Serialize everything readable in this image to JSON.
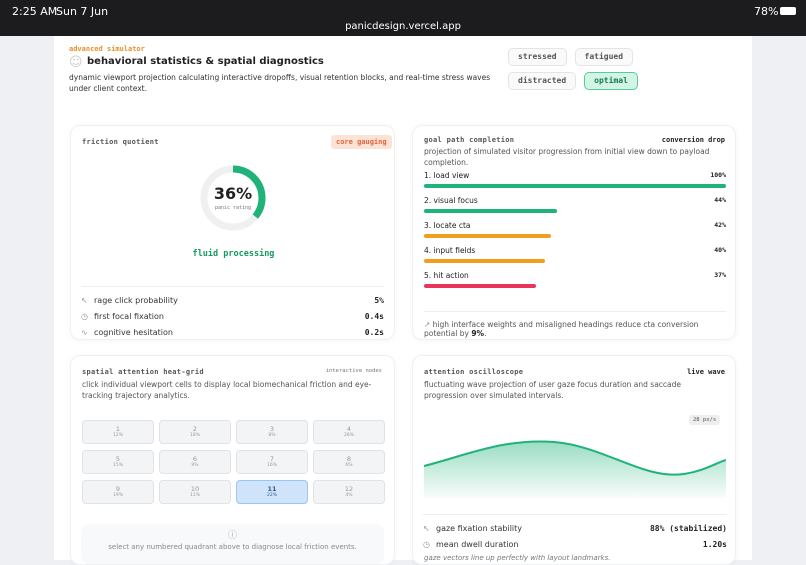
{
  "status_bar": {
    "time": "2:25 AM",
    "date": "Sun 7 Jun",
    "battery": "78%",
    "url": "panicdesign.vercel.app"
  },
  "header": {
    "eyebrow": "advanced simulator",
    "title": "behavioral statistics & spatial diagnostics",
    "description": "dynamic viewport projection calculating interactive dropoffs, visual retention blocks, and real-time stress waves under client context.",
    "modes": [
      "stressed",
      "fatigued",
      "distracted",
      "optimal"
    ],
    "active_mode": "optimal"
  },
  "friction": {
    "title": "friction quotient",
    "badge": "core gauging",
    "gauge": {
      "value": 36,
      "label": "36%"
    },
    "gauge_caption": "panic rating",
    "state": "fluid processing",
    "metrics": [
      {
        "name": "rage click probability",
        "value": "5%"
      },
      {
        "name": "first focal fixation",
        "value": "0.4s"
      },
      {
        "name": "cognitive hesitation",
        "value": "0.2s"
      }
    ]
  },
  "goal_path": {
    "title": "goal path completion",
    "badge": "conversion drop",
    "description": "projection of simulated visitor progression from initial view down to payload completion.",
    "steps": [
      {
        "name": "1. load view",
        "value": 100,
        "label": "100%",
        "color": "#1fb37a"
      },
      {
        "name": "2. visual focus",
        "value": 44,
        "label": "44%",
        "color": "#1fb37a"
      },
      {
        "name": "3. locate cta",
        "value": 42,
        "label": "42%",
        "color": "#f29d1c"
      },
      {
        "name": "4. input fields",
        "value": 40,
        "label": "40%",
        "color": "#f29d1c"
      },
      {
        "name": "5. hit action",
        "value": 37,
        "label": "37%",
        "color": "#e8365a"
      }
    ],
    "note": "high interface weights and misaligned headings reduce cta conversion potential by",
    "note_value": "9%",
    "note_end": "."
  },
  "heat_grid": {
    "title": "spatial attention heat-grid",
    "badge": "interactive nodes",
    "description": "click individual viewport cells to display local biomechanical friction and eye-tracking trajectory analytics.",
    "cells": [
      {
        "id": "1",
        "value": "12%"
      },
      {
        "id": "2",
        "value": "18%"
      },
      {
        "id": "3",
        "value": "8%"
      },
      {
        "id": "4",
        "value": "28%"
      },
      {
        "id": "5",
        "value": "15%"
      },
      {
        "id": "6",
        "value": "9%"
      },
      {
        "id": "7",
        "value": "16%"
      },
      {
        "id": "8",
        "value": "6%"
      },
      {
        "id": "9",
        "value": "19%"
      },
      {
        "id": "10",
        "value": "11%"
      },
      {
        "id": "11",
        "value": "22%"
      },
      {
        "id": "12",
        "value": "4%"
      }
    ],
    "active_cell": "11",
    "footer": "select any numbered quadrant above to diagnose local friction events."
  },
  "oscilloscope": {
    "title": "attention oscilloscope",
    "badge": "live wave",
    "description": "fluctuating wave projection of user gaze focus duration and saccade progression over simulated intervals.",
    "speed": "28 px/s",
    "metrics": [
      {
        "name": "gaze fixation stability",
        "value": "88% (stabilized)"
      },
      {
        "name": "mean dwell duration",
        "value": "1.20s"
      }
    ],
    "footer": "gaze vectors line up perfectly with layout landmarks."
  }
}
